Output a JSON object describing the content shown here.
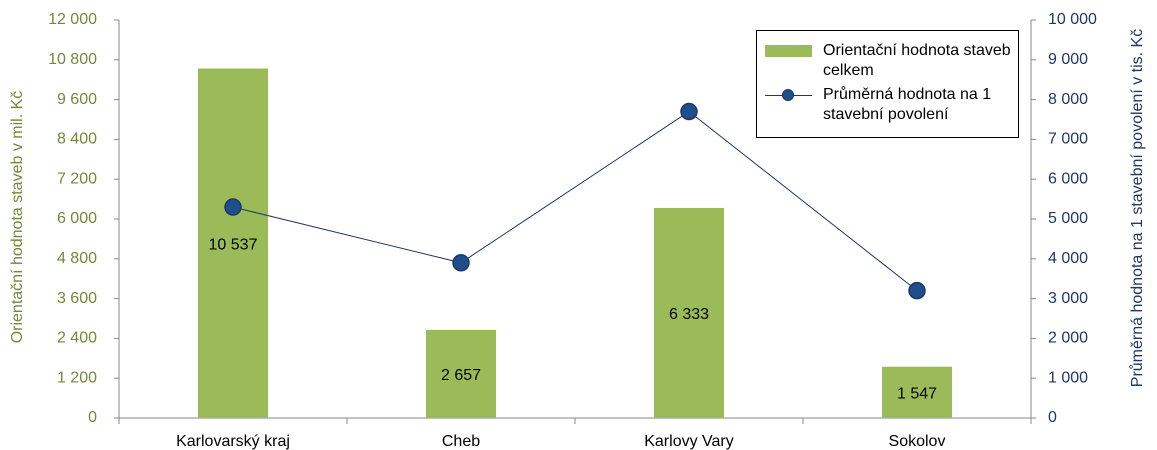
{
  "chart_data": {
    "type": "bar",
    "categories": [
      "Karlovarský kraj",
      "Cheb",
      "Karlovy Vary",
      "Sokolov"
    ],
    "series": [
      {
        "name": "Orientační hodnota staveb celkem",
        "type": "bar",
        "color": "#9bbb59",
        "values": [
          10537,
          2657,
          6333,
          1547
        ],
        "value_labels": [
          "10 537",
          "2 657",
          "6 333",
          "1 547"
        ]
      },
      {
        "name": "Průměrná hodnota na 1 stavební povolení",
        "type": "line",
        "axis": "y2",
        "color": "#1f3864",
        "marker_color": "#1f4e8c",
        "values": [
          5300,
          3900,
          7700,
          3200
        ]
      }
    ],
    "ylabel": "Orientační hodnota staveb v mil. Kč",
    "y2label": "Průměrná hodnota na 1 stavební povolení v tis. Kč",
    "ylabel_color": "#6f8a3a",
    "y2label_color": "#1f3864",
    "ylim": [
      0,
      12000
    ],
    "yticks": [
      0,
      {
        "value": 1200,
        "label": "1 200"
      },
      {
        "value": 2400,
        "label": "2 400"
      },
      {
        "value": 3600,
        "label": "3 600"
      },
      {
        "value": 4800,
        "label": "4 800"
      },
      {
        "value": 6000,
        "label": "6 000"
      },
      {
        "value": 7200,
        "label": "7 200"
      },
      {
        "value": 8400,
        "label": "8 400"
      },
      {
        "value": 9600,
        "label": "9 600"
      },
      {
        "value": 10800,
        "label": "10 800"
      },
      {
        "value": 12000,
        "label": "12 000"
      }
    ],
    "y2lim": [
      0,
      10000
    ],
    "y2ticks": [
      0,
      {
        "value": 1000,
        "label": "1 000"
      },
      {
        "value": 2000,
        "label": "2 000"
      },
      {
        "value": 3000,
        "label": "3 000"
      },
      {
        "value": 4000,
        "label": "4 000"
      },
      {
        "value": 5000,
        "label": "5 000"
      },
      {
        "value": 6000,
        "label": "6 000"
      },
      {
        "value": 7000,
        "label": "7 000"
      },
      {
        "value": 8000,
        "label": "8 000"
      },
      {
        "value": 9000,
        "label": "9 000"
      },
      {
        "value": 10000,
        "label": "10 000"
      }
    ],
    "legend": "top-right"
  }
}
